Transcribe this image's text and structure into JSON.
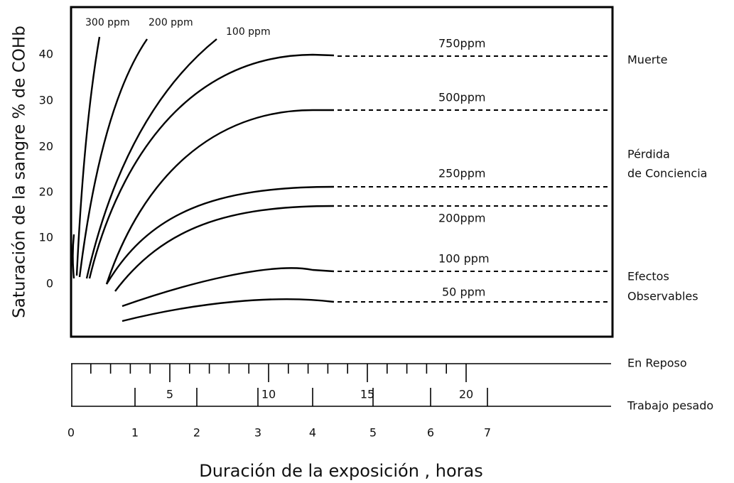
{
  "y_axis": {
    "title": "Saturación de la sangre % de COHb",
    "labels": [
      "40",
      "30",
      "20",
      "20",
      "10",
      "0"
    ]
  },
  "x_axis": {
    "title": "Duración de la exposición , horas"
  },
  "curve_labels": [
    "300 ppm",
    "200 ppm",
    "100 ppm",
    "750ppm",
    "500ppm",
    "250ppm",
    "200ppm",
    "100 ppm",
    "50 ppm"
  ],
  "zones": [
    "Muerte",
    "Pérdida",
    "de Conciencia",
    "Efectos",
    "Observables"
  ],
  "rest_scale": {
    "label": "En Reposo",
    "ticks": [
      "5",
      "10",
      "15",
      "20"
    ]
  },
  "heavy_scale": {
    "label": "Trabajo pesado",
    "ticks": [
      "0",
      "1",
      "2",
      "3",
      "4",
      "5",
      "6",
      "7"
    ]
  }
}
